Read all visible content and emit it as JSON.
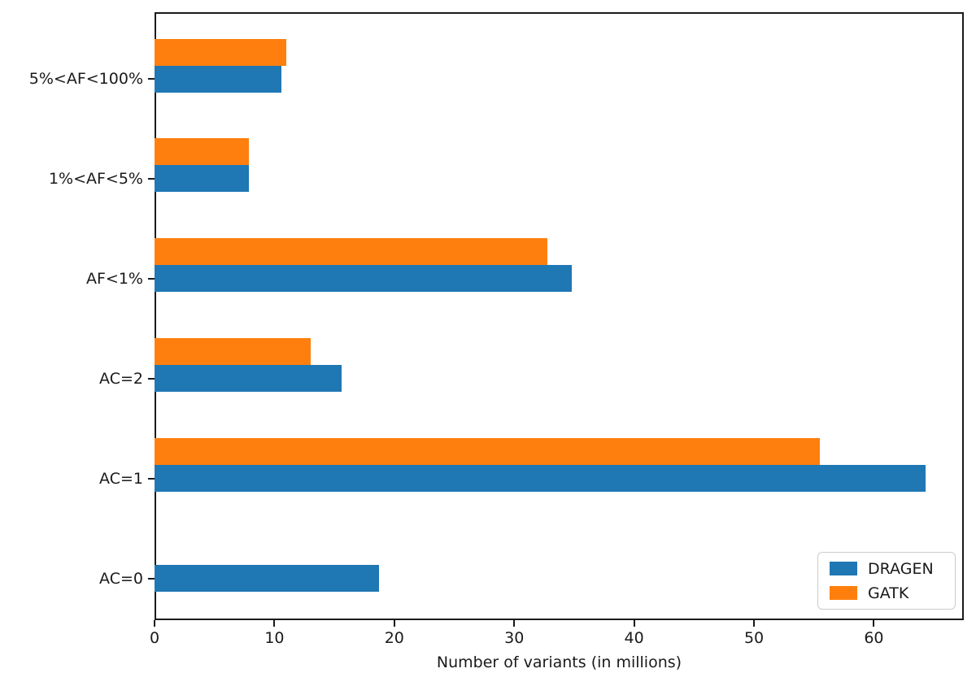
{
  "figure": {
    "background": "#ffffff",
    "spine_color": "#1a1a1a",
    "text_color": "#1a1a1a"
  },
  "chart_data": {
    "type": "bar",
    "orientation": "horizontal",
    "title": "",
    "xlabel": "Number of variants (in millions)",
    "ylabel": "",
    "categories_top_to_bottom": [
      "5%<AF<100%",
      "1%<AF<5%",
      "AF<1%",
      "AC=2",
      "AC=1",
      "AC=0"
    ],
    "series": [
      {
        "name": "DRAGEN",
        "color": "#1f77b4",
        "values": [
          10.6,
          7.9,
          34.8,
          15.6,
          64.3,
          18.7
        ]
      },
      {
        "name": "GATK",
        "color": "#ff7f0e",
        "values": [
          11.0,
          7.9,
          32.8,
          13.0,
          55.5,
          0
        ]
      }
    ],
    "xlim": [
      0,
      67.5
    ],
    "xticks": [
      0,
      10,
      20,
      30,
      40,
      50,
      60
    ],
    "grid": false,
    "legend": {
      "position": "lower-right",
      "entries": [
        "DRAGEN",
        "GATK"
      ]
    }
  }
}
